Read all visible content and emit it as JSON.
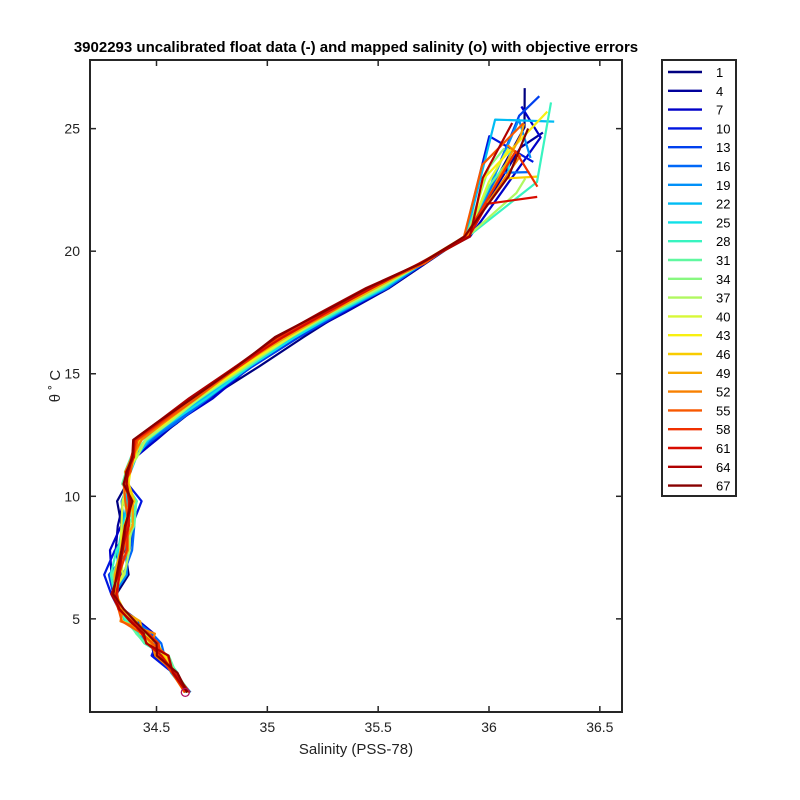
{
  "chart_data": {
    "type": "line",
    "title": "3902293 uncalibrated float data (-) and mapped salinity (o) with objective errors",
    "xlabel": "Salinity (PSS-78)",
    "ylabel": "θ ˚ C",
    "xlim": [
      34.2,
      36.6
    ],
    "ylim": [
      1.2,
      27.8
    ],
    "x_ticks": [
      34.5,
      35,
      35.5,
      36,
      36.5
    ],
    "x_tick_labels": [
      "34.5",
      "35",
      "35.5",
      "36",
      "36.5"
    ],
    "y_ticks": [
      5,
      10,
      15,
      20,
      25
    ],
    "y_tick_labels": [
      "5",
      "10",
      "15",
      "20",
      "25"
    ],
    "grid": false,
    "legend_position": "outside-right",
    "legend": [
      {
        "label": "1",
        "color": "#000080"
      },
      {
        "label": "4",
        "color": "#00009c"
      },
      {
        "label": "7",
        "color": "#0000c8"
      },
      {
        "label": "10",
        "color": "#0016e0"
      },
      {
        "label": "13",
        "color": "#0040ee"
      },
      {
        "label": "16",
        "color": "#0068f8"
      },
      {
        "label": "19",
        "color": "#0090f8"
      },
      {
        "label": "22",
        "color": "#00bcf4"
      },
      {
        "label": "25",
        "color": "#10e0e8"
      },
      {
        "label": "28",
        "color": "#38f4c0"
      },
      {
        "label": "31",
        "color": "#60f8a0"
      },
      {
        "label": "34",
        "color": "#88f880"
      },
      {
        "label": "37",
        "color": "#b0f860"
      },
      {
        "label": "40",
        "color": "#d8f838"
      },
      {
        "label": "43",
        "color": "#f8f010"
      },
      {
        "label": "46",
        "color": "#f8cc00"
      },
      {
        "label": "49",
        "color": "#f8a800"
      },
      {
        "label": "52",
        "color": "#f88000"
      },
      {
        "label": "55",
        "color": "#f85800"
      },
      {
        "label": "58",
        "color": "#f03000"
      },
      {
        "label": "61",
        "color": "#d80c00"
      },
      {
        "label": "64",
        "color": "#b00000"
      },
      {
        "label": "67",
        "color": "#880000"
      }
    ],
    "base_profile": {
      "salinity": [
        34.64,
        34.58,
        34.52,
        34.48,
        34.44,
        34.38,
        34.34,
        34.31,
        34.32,
        34.35,
        34.37,
        34.38,
        34.36,
        34.37,
        34.4,
        34.45,
        34.55,
        34.7,
        34.9,
        35.1,
        35.3,
        35.5,
        35.7,
        35.9,
        36.0,
        36.1
      ],
      "theta": [
        2.0,
        2.8,
        3.5,
        4.0,
        4.4,
        4.9,
        5.4,
        6.0,
        6.8,
        7.8,
        8.8,
        9.8,
        10.5,
        11.0,
        11.6,
        12.3,
        13.0,
        14.0,
        15.3,
        16.5,
        17.5,
        18.5,
        19.5,
        20.6,
        21.4,
        22.0
      ]
    },
    "mapped_salinity": {
      "salinity": 34.63,
      "theta": 2.0,
      "color": "#b01060"
    }
  }
}
